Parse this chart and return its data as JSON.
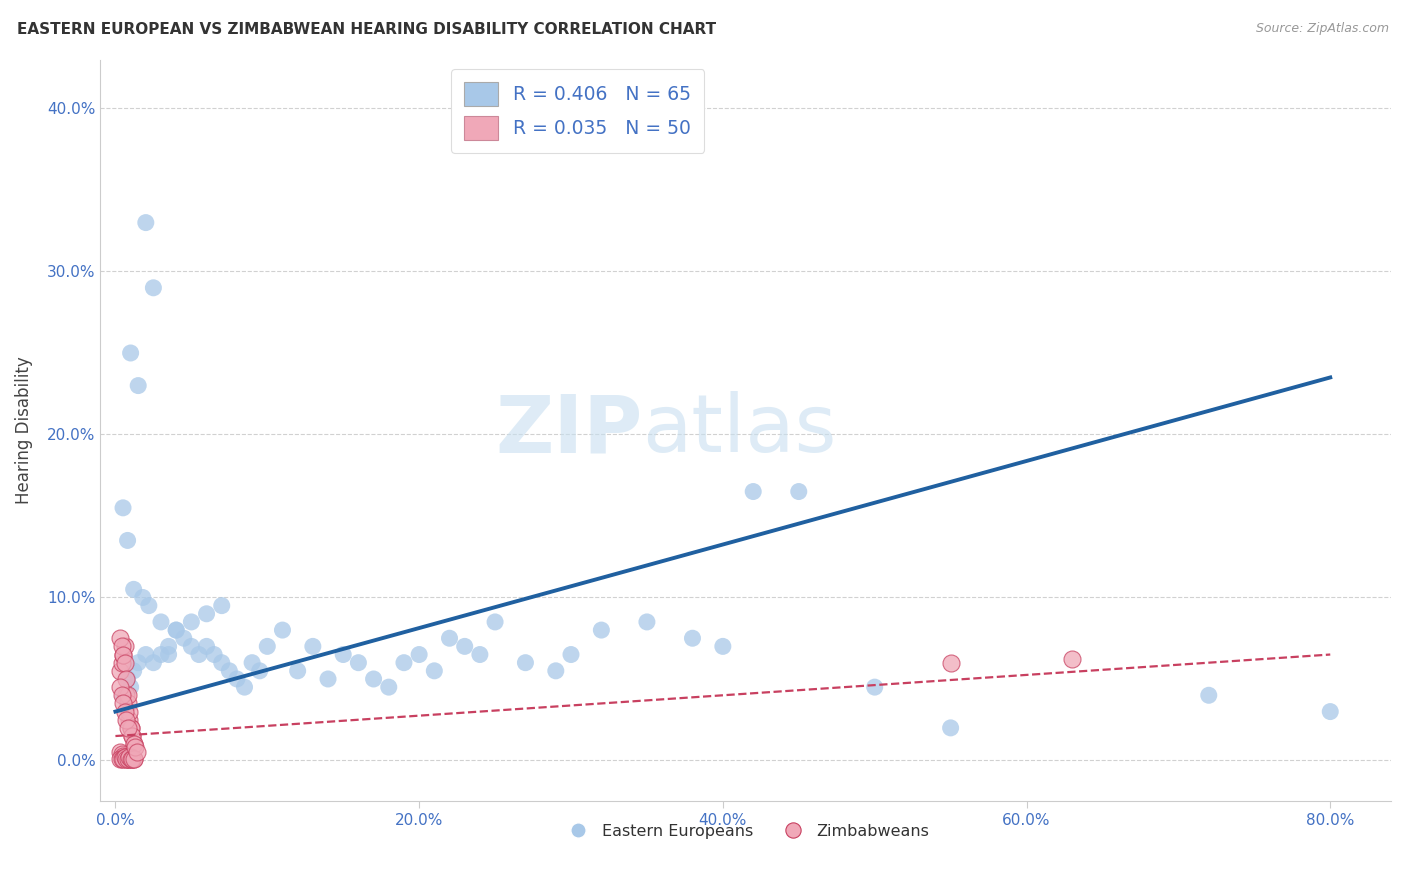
{
  "title": "EASTERN EUROPEAN VS ZIMBABWEAN HEARING DISABILITY CORRELATION CHART",
  "source": "Source: ZipAtlas.com",
  "xlabel_ticks": [
    "0.0%",
    "20.0%",
    "40.0%",
    "60.0%",
    "80.0%"
  ],
  "xlabel_tick_vals": [
    0.0,
    0.2,
    0.4,
    0.6,
    0.8
  ],
  "ylabel_ticks": [
    "0.0%",
    "10.0%",
    "20.0%",
    "30.0%",
    "40.0%"
  ],
  "ylabel_tick_vals": [
    0.0,
    0.1,
    0.2,
    0.3,
    0.4
  ],
  "xlim": [
    -0.01,
    0.84
  ],
  "ylim": [
    -0.025,
    0.43
  ],
  "blue_R": 0.406,
  "blue_N": 65,
  "pink_R": 0.035,
  "pink_N": 50,
  "blue_color": "#A8C8E8",
  "blue_line_color": "#2060A0",
  "pink_color": "#F0A8B8",
  "pink_line_color": "#C84060",
  "watermark_zip": "ZIP",
  "watermark_atlas": "atlas",
  "legend_label_blue": "Eastern Europeans",
  "legend_label_pink": "Zimbabweans",
  "blue_line_x0": 0.0,
  "blue_line_y0": 0.03,
  "blue_line_x1": 0.8,
  "blue_line_y1": 0.235,
  "pink_line_x0": 0.0,
  "pink_line_y0": 0.015,
  "pink_line_x1": 0.8,
  "pink_line_y1": 0.065,
  "blue_x": [
    0.02,
    0.025,
    0.01,
    0.015,
    0.005,
    0.008,
    0.012,
    0.018,
    0.022,
    0.03,
    0.035,
    0.04,
    0.045,
    0.05,
    0.055,
    0.06,
    0.065,
    0.07,
    0.075,
    0.08,
    0.085,
    0.09,
    0.095,
    0.1,
    0.11,
    0.12,
    0.13,
    0.14,
    0.15,
    0.16,
    0.17,
    0.18,
    0.19,
    0.2,
    0.21,
    0.22,
    0.23,
    0.24,
    0.25,
    0.27,
    0.29,
    0.3,
    0.32,
    0.35,
    0.38,
    0.4,
    0.42,
    0.45,
    0.5,
    0.55,
    0.005,
    0.008,
    0.01,
    0.012,
    0.015,
    0.02,
    0.025,
    0.03,
    0.035,
    0.04,
    0.05,
    0.06,
    0.07,
    0.72,
    0.8
  ],
  "blue_y": [
    0.33,
    0.29,
    0.25,
    0.23,
    0.155,
    0.135,
    0.105,
    0.1,
    0.095,
    0.085,
    0.065,
    0.08,
    0.075,
    0.07,
    0.065,
    0.07,
    0.065,
    0.06,
    0.055,
    0.05,
    0.045,
    0.06,
    0.055,
    0.07,
    0.08,
    0.055,
    0.07,
    0.05,
    0.065,
    0.06,
    0.05,
    0.045,
    0.06,
    0.065,
    0.055,
    0.075,
    0.07,
    0.065,
    0.085,
    0.06,
    0.055,
    0.065,
    0.08,
    0.085,
    0.075,
    0.07,
    0.165,
    0.165,
    0.045,
    0.02,
    0.04,
    0.05,
    0.045,
    0.055,
    0.06,
    0.065,
    0.06,
    0.065,
    0.07,
    0.08,
    0.085,
    0.09,
    0.095,
    0.04,
    0.03
  ],
  "pink_x": [
    0.003,
    0.004,
    0.005,
    0.006,
    0.007,
    0.008,
    0.009,
    0.01,
    0.011,
    0.012,
    0.003,
    0.004,
    0.005,
    0.006,
    0.007,
    0.008,
    0.009,
    0.01,
    0.011,
    0.012,
    0.003,
    0.004,
    0.005,
    0.006,
    0.007,
    0.008,
    0.009,
    0.01,
    0.011,
    0.012,
    0.003,
    0.004,
    0.005,
    0.006,
    0.007,
    0.008,
    0.009,
    0.01,
    0.011,
    0.012,
    0.003,
    0.004,
    0.005,
    0.006,
    0.007,
    0.008,
    0.55,
    0.63,
    0.013,
    0.014
  ],
  "pink_y": [
    0.055,
    0.06,
    0.065,
    0.07,
    0.04,
    0.035,
    0.025,
    0.02,
    0.015,
    0.01,
    0.075,
    0.07,
    0.065,
    0.06,
    0.05,
    0.04,
    0.03,
    0.02,
    0.015,
    0.01,
    0.005,
    0.004,
    0.003,
    0.002,
    0.001,
    0.001,
    0.001,
    0.002,
    0.001,
    0.001,
    0.001,
    0.001,
    0.001,
    0.002,
    0.001,
    0.001,
    0.002,
    0.001,
    0.001,
    0.001,
    0.045,
    0.04,
    0.035,
    0.03,
    0.025,
    0.02,
    0.06,
    0.062,
    0.008,
    0.005
  ]
}
